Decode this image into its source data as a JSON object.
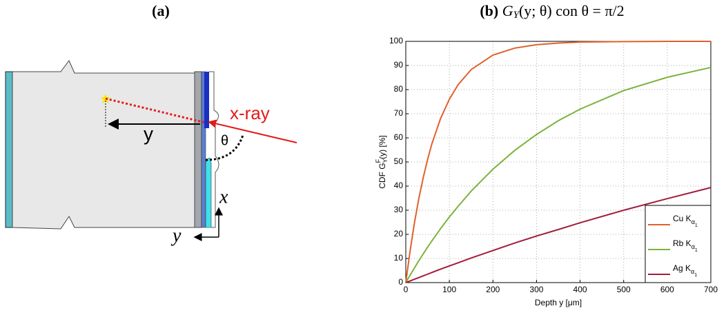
{
  "diagram": {
    "title": "(a)",
    "beam_label": "x-ray",
    "depth_label": "y",
    "angle_label": "θ",
    "axis_x": "x",
    "axis_y": "y"
  },
  "chart_data": {
    "type": "line",
    "title": "(b)",
    "title_math": [
      "G",
      "Y",
      "(y; θ) con θ = π/2"
    ],
    "ylabel": [
      "CDF  G",
      "Y",
      "F",
      "(y) [%]"
    ],
    "xlabel": "Depth y [μm]",
    "x": [
      0,
      10,
      20,
      30,
      40,
      50,
      60,
      80,
      100,
      120,
      150,
      200,
      250,
      300,
      350,
      400,
      500,
      600,
      700
    ],
    "series": [
      {
        "name": "Cu K",
        "name_sub": "α",
        "name_subsub": "1",
        "color": "#e0602a",
        "values": [
          0,
          13.3,
          24.9,
          34.9,
          43.5,
          51.0,
          57.6,
          68.1,
          76.0,
          82.0,
          88.3,
          94.3,
          97.2,
          98.6,
          99.3,
          99.7,
          99.9,
          100,
          100
        ]
      },
      {
        "name": "Rb K",
        "name_sub": "α",
        "name_subsub": "1",
        "color": "#7ab43a",
        "values": [
          0,
          3.1,
          6.1,
          9.1,
          11.9,
          14.7,
          17.3,
          22.4,
          27.2,
          31.6,
          37.9,
          47.0,
          54.8,
          61.4,
          67.1,
          71.9,
          79.6,
          85.1,
          89.2
        ]
      },
      {
        "name": "Ag K",
        "name_sub": "α",
        "name_subsub": "1",
        "color": "#a01c3c",
        "values": [
          0,
          0.7,
          1.4,
          2.1,
          2.8,
          3.5,
          4.2,
          5.6,
          6.9,
          8.2,
          10.2,
          13.3,
          16.4,
          19.3,
          22.0,
          24.8,
          30.0,
          34.8,
          39.4
        ]
      }
    ],
    "xlim": [
      0,
      700
    ],
    "xticks": [
      0,
      100,
      200,
      300,
      400,
      500,
      600,
      700
    ],
    "ylim": [
      0,
      100
    ],
    "yticks": [
      0,
      10,
      20,
      30,
      40,
      50,
      60,
      70,
      80,
      90,
      100
    ],
    "grid": true,
    "legend": "lower-right"
  }
}
